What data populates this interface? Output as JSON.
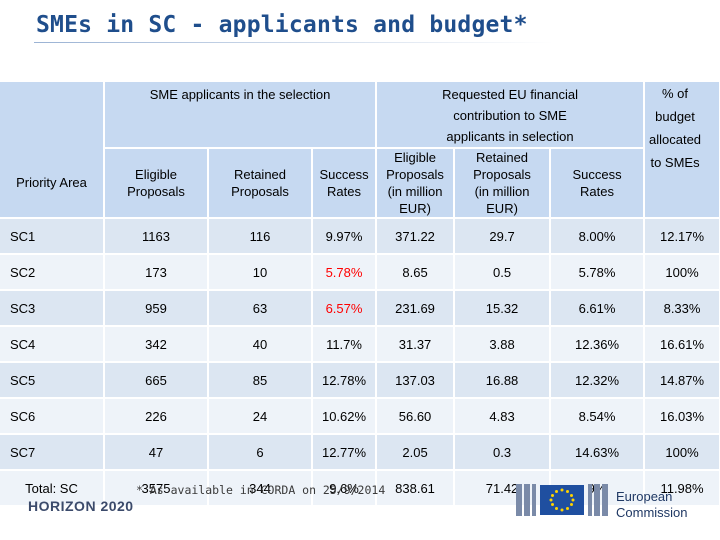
{
  "title": "SMEs in SC - applicants and budget*",
  "header": {
    "group1": "SME applicants in the selection",
    "group2_line1": "Requested EU financial",
    "group2_line2": "contribution to SME",
    "group2_line3": "applicants in selection",
    "pct_line1": "% of",
    "pct_line2": "budget",
    "pct_line3": "allocated",
    "pct_line4": "to SMEs",
    "priority_area": "Priority Area",
    "eligible_l1": "Eligible",
    "eligible_l2": "Proposals",
    "retained_l1": "Retained",
    "retained_l2": "Proposals",
    "success_l1": "Success",
    "success_l2": "Rates",
    "elig_eur_l1": "Eligible",
    "elig_eur_l2": "Proposals",
    "elig_eur_l3": "(in million",
    "elig_eur_l4": "EUR)",
    "ret_eur_l1": "Retained",
    "ret_eur_l2": "Proposals",
    "ret_eur_l3": "(in million",
    "ret_eur_l4": "EUR)",
    "success2_l1": "Success",
    "success2_l2": "Rates"
  },
  "rows": [
    {
      "area": "SC1",
      "eligible": "1163",
      "retained": "116",
      "success": "9.97%",
      "elig_eur": "371.22",
      "ret_eur": "29.7",
      "success2": "8.00%",
      "pct": "12.17%"
    },
    {
      "area": "SC2",
      "eligible": "173",
      "retained": "10",
      "success": "5.78%",
      "elig_eur": "8.65",
      "ret_eur": "0.5",
      "success2": "5.78%",
      "pct": "100%"
    },
    {
      "area": "SC3",
      "eligible": "959",
      "retained": "63",
      "success": "6.57%",
      "elig_eur": "231.69",
      "ret_eur": "15.32",
      "success2": "6.61%",
      "pct": "8.33%"
    },
    {
      "area": "SC4",
      "eligible": "342",
      "retained": "40",
      "success": "11.7%",
      "elig_eur": "31.37",
      "ret_eur": "3.88",
      "success2": "12.36%",
      "pct": "16.61%"
    },
    {
      "area": "SC5",
      "eligible": "665",
      "retained": "85",
      "success": "12.78%",
      "elig_eur": "137.03",
      "ret_eur": "16.88",
      "success2": "12.32%",
      "pct": "14.87%"
    },
    {
      "area": "SC6",
      "eligible": "226",
      "retained": "24",
      "success": "10.62%",
      "elig_eur": "56.60",
      "ret_eur": "4.83",
      "success2": "8.54%",
      "pct": "16.03%"
    },
    {
      "area": "SC7",
      "eligible": "47",
      "retained": "6",
      "success": "12.77%",
      "elig_eur": "2.05",
      "ret_eur": "0.3",
      "success2": "14.63%",
      "pct": "100%"
    },
    {
      "area": "Total: SC",
      "eligible": "3575",
      "retained": "344",
      "success": "9.6%",
      "elig_eur": "838.61",
      "ret_eur": "71.42",
      "success2": "9%",
      "pct": "11.98%"
    }
  ],
  "highlight_color": "#ff0000",
  "footnote": "* As available in CORDA on 25/9/2014",
  "footer": {
    "program_logo": "HORIZON 2020",
    "ec_line1": "European",
    "ec_line2": "Commission",
    "ec_emblem_icon": "eu-flag-icon"
  }
}
